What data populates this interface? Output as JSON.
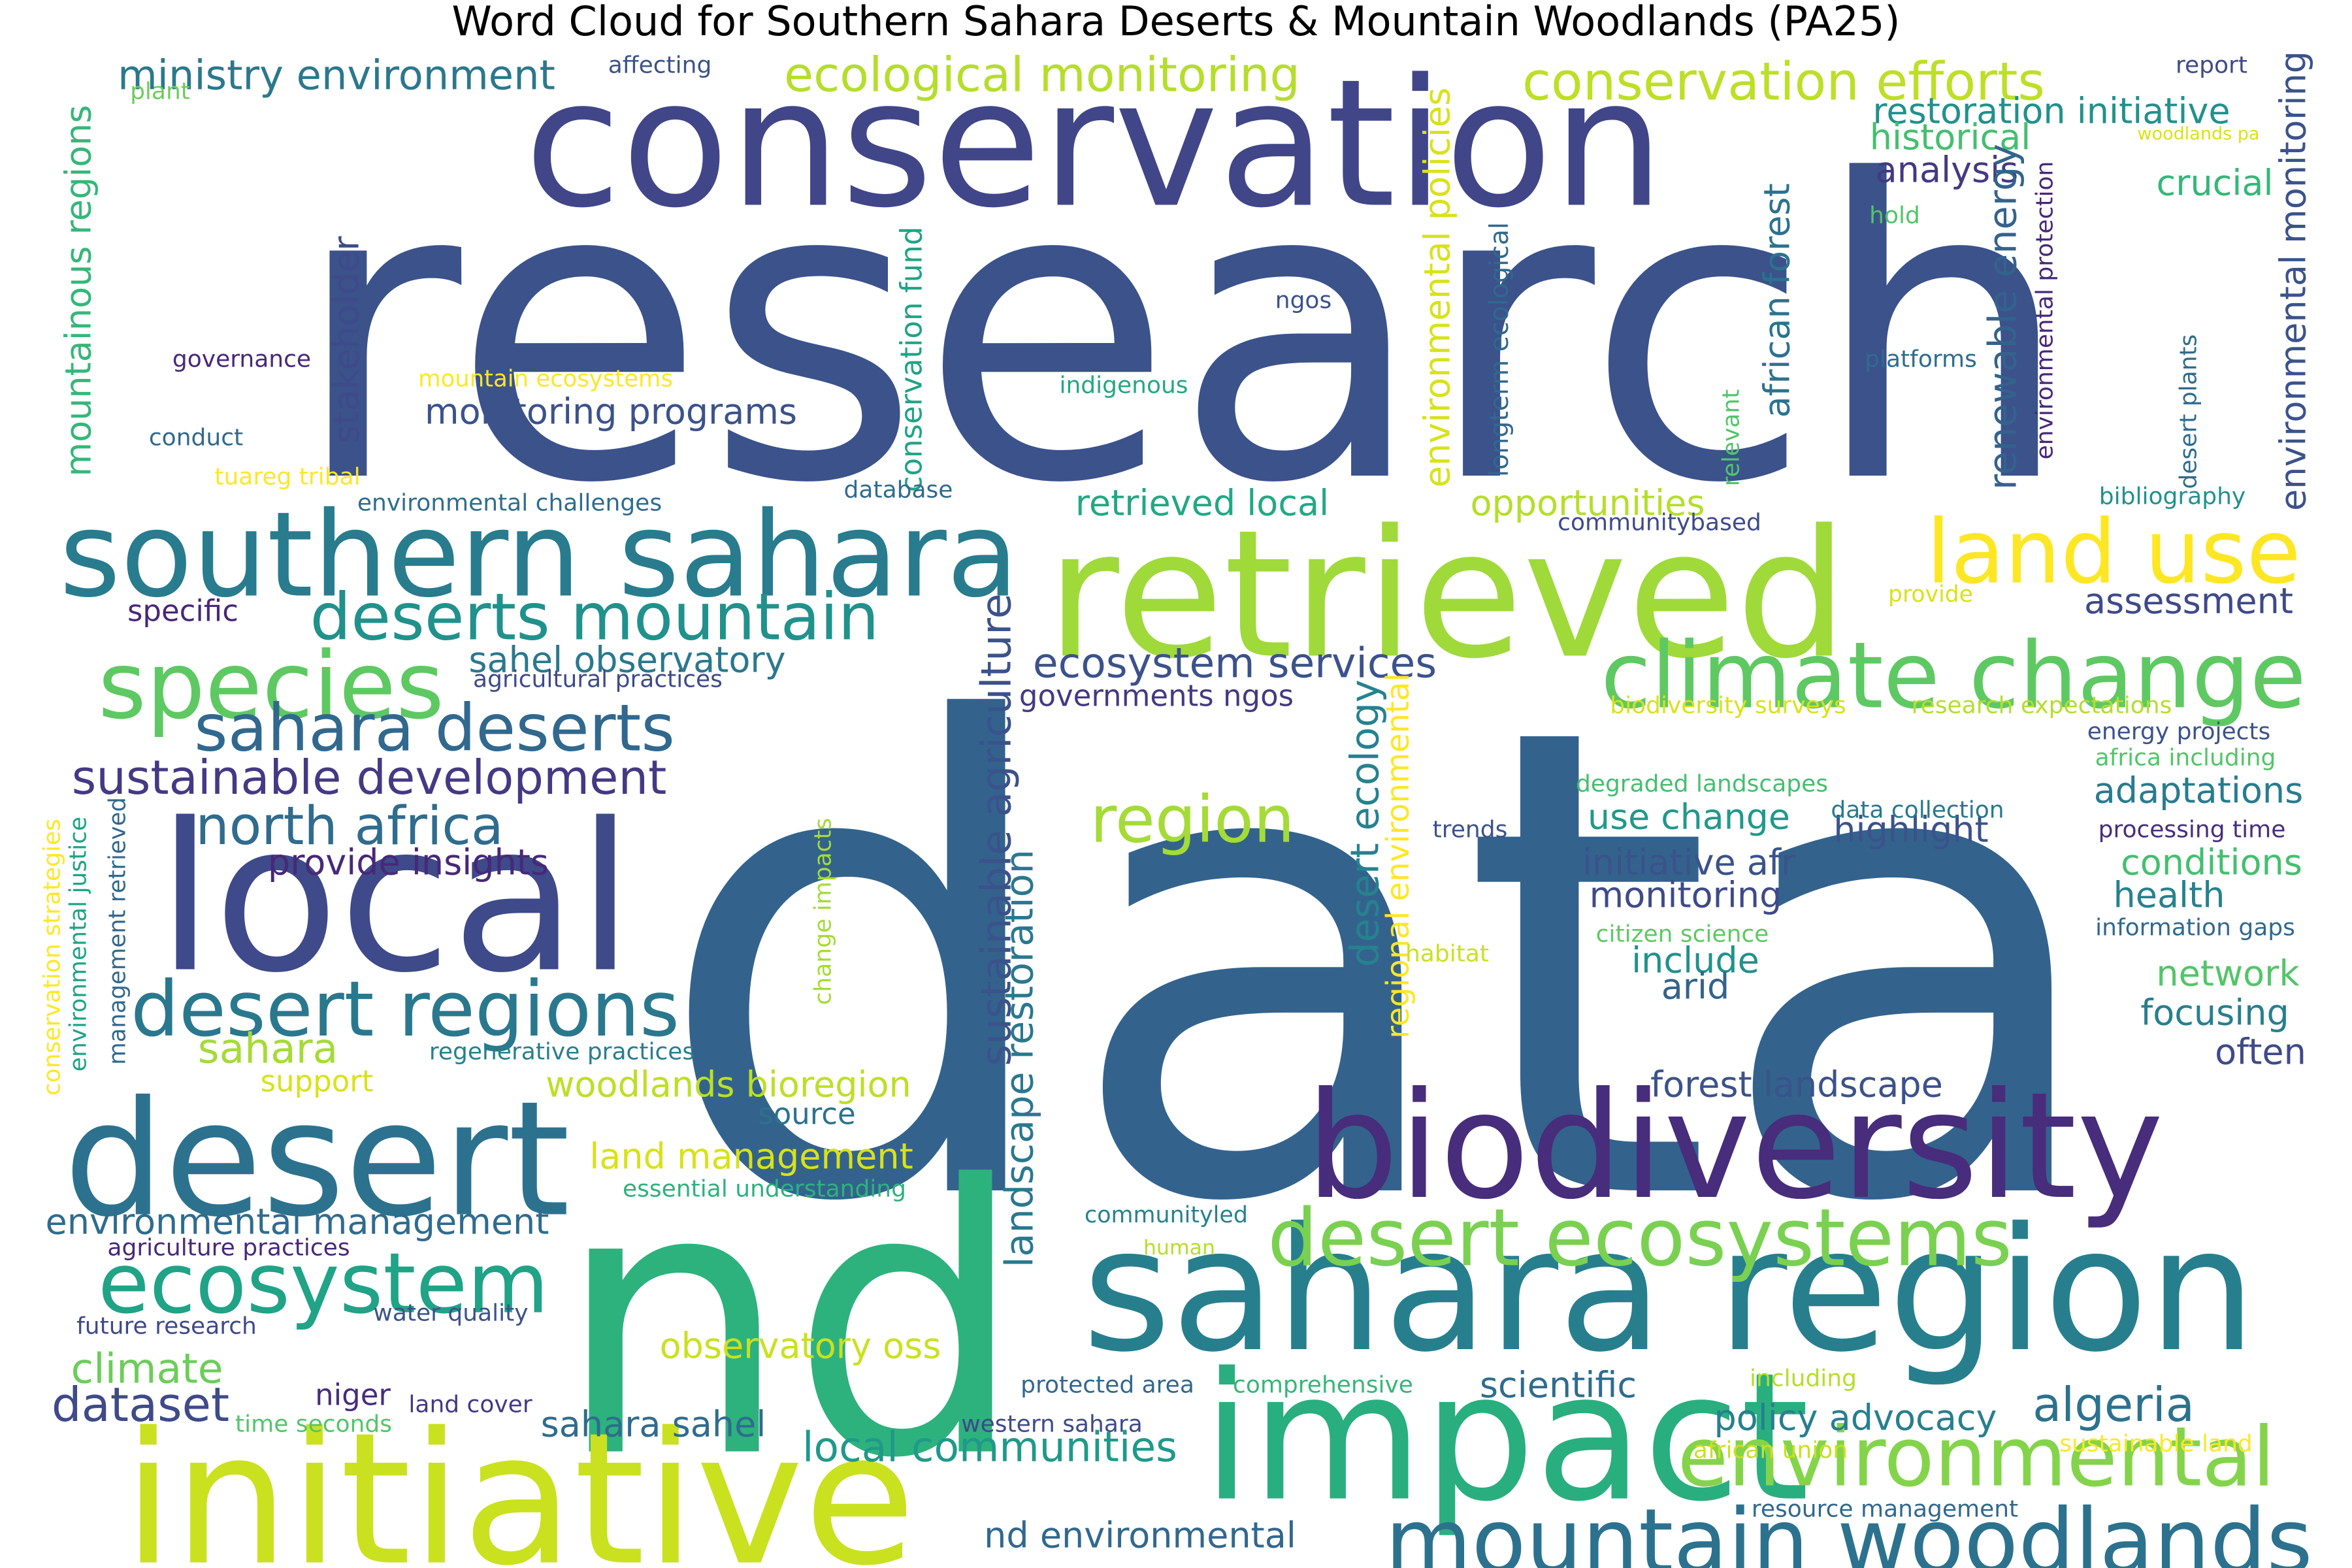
{
  "chart_data": {
    "type": "wordcloud",
    "title": "Word Cloud for Southern Sahara Deserts & Mountain Woodlands (PA25)",
    "words": [
      {
        "text": "data",
        "color": "#33638d"
      },
      {
        "text": "research",
        "color": "#3b528b"
      },
      {
        "text": "conservation",
        "color": "#404688"
      },
      {
        "text": "nd",
        "color": "#2db27d"
      },
      {
        "text": "retrieved",
        "color": "#9fda3a"
      },
      {
        "text": "biodiversity",
        "color": "#472d7b"
      },
      {
        "text": "sahara region",
        "color": "#277f8e"
      },
      {
        "text": "impact",
        "color": "#29af7f"
      },
      {
        "text": "initiative",
        "color": "#cae11f"
      },
      {
        "text": "desert",
        "color": "#2c728e"
      },
      {
        "text": "southern sahara",
        "color": "#287c8e"
      },
      {
        "text": "local",
        "color": "#3e4a89"
      },
      {
        "text": "ecosystem",
        "color": "#20a386"
      },
      {
        "text": "climate change",
        "color": "#5ec962"
      },
      {
        "text": "mountain woodlands",
        "color": "#2c728e"
      },
      {
        "text": "desert ecosystems",
        "color": "#7ad151"
      },
      {
        "text": "species",
        "color": "#5ec962"
      },
      {
        "text": "land use",
        "color": "#fde725"
      },
      {
        "text": "desert regions",
        "color": "#2a788e"
      },
      {
        "text": "environmental",
        "color": "#84d44b"
      },
      {
        "text": "deserts mountain",
        "color": "#21918c"
      },
      {
        "text": "sahara deserts",
        "color": "#31688e"
      },
      {
        "text": "region",
        "color": "#a5db36"
      },
      {
        "text": "conservation efforts",
        "color": "#bddf26"
      },
      {
        "text": "ecological monitoring",
        "color": "#b5de2b"
      },
      {
        "text": "sustainable development",
        "color": "#443983"
      },
      {
        "text": "north africa",
        "color": "#2f6c8e"
      },
      {
        "text": "ecosystem services",
        "color": "#3b528b"
      },
      {
        "text": "ministry environment",
        "color": "#2a788e"
      },
      {
        "text": "restoration initiative",
        "color": "#21918c"
      },
      {
        "text": "algeria",
        "color": "#2c728e"
      },
      {
        "text": "local communities",
        "color": "#1f998a"
      },
      {
        "text": "climate",
        "color": "#6ccd5a"
      },
      {
        "text": "dataset",
        "color": "#3e4a89"
      },
      {
        "text": "sahara",
        "color": "#a5db36"
      },
      {
        "text": "analysis",
        "color": "#443983"
      },
      {
        "text": "historical",
        "color": "#44bf70"
      },
      {
        "text": "crucial",
        "color": "#35b779"
      },
      {
        "text": "sahel observatory",
        "color": "#2a788e"
      },
      {
        "text": "governments ngos",
        "color": "#443983"
      },
      {
        "text": "monitoring programs",
        "color": "#3b528b"
      },
      {
        "text": "land management",
        "color": "#d8e219"
      },
      {
        "text": "woodlands bioregion",
        "color": "#bddf26"
      },
      {
        "text": "environmental management",
        "color": "#2f6c8e"
      },
      {
        "text": "provide insights",
        "color": "#482878"
      },
      {
        "text": "sahara sahel",
        "color": "#2f6c8e"
      },
      {
        "text": "observatory oss",
        "color": "#cae11f"
      },
      {
        "text": "retrieved local",
        "color": "#22a884"
      },
      {
        "text": "opportunities",
        "color": "#b5de2b"
      },
      {
        "text": "assessment",
        "color": "#3e4a89"
      },
      {
        "text": "adaptations",
        "color": "#287c8e"
      },
      {
        "text": "highlight",
        "color": "#3b528b"
      },
      {
        "text": "use change",
        "color": "#1f998a"
      },
      {
        "text": "initiative afr",
        "color": "#3b528b"
      },
      {
        "text": "monitoring",
        "color": "#3e4a89"
      },
      {
        "text": "include",
        "color": "#21918c"
      },
      {
        "text": "arid",
        "color": "#33638d"
      },
      {
        "text": "conditions",
        "color": "#44bf70"
      },
      {
        "text": "health",
        "color": "#26828e"
      },
      {
        "text": "network",
        "color": "#52c569"
      },
      {
        "text": "focusing",
        "color": "#277f8e"
      },
      {
        "text": "often",
        "color": "#3e4a89"
      },
      {
        "text": "forest landscape",
        "color": "#3b528b"
      },
      {
        "text": "policy advocacy",
        "color": "#277f8e"
      },
      {
        "text": "scientific",
        "color": "#2f6c8e"
      },
      {
        "text": "nd environmental",
        "color": "#31688e"
      },
      {
        "text": "source",
        "color": "#2c728e"
      },
      {
        "text": "support",
        "color": "#d8e219"
      },
      {
        "text": "specific",
        "color": "#482878"
      },
      {
        "text": "niger",
        "color": "#472d7b"
      },
      {
        "text": "landscape restoration",
        "color": "#2a788e",
        "rotate": true
      },
      {
        "text": "sustainable agriculture",
        "color": "#3b528b",
        "rotate": true
      },
      {
        "text": "desert ecology",
        "color": "#26828e",
        "rotate": true
      },
      {
        "text": "regional environmental",
        "color": "#fde725",
        "rotate": true
      },
      {
        "text": "environmental policies",
        "color": "#d8e219",
        "rotate": true
      },
      {
        "text": "conservation fund",
        "color": "#20a386",
        "rotate": true
      },
      {
        "text": "stakeholder",
        "color": "#3e4a89",
        "rotate": true
      },
      {
        "text": "mountainous regions",
        "color": "#35b779",
        "rotate": true
      },
      {
        "text": "african forest",
        "color": "#2c728e",
        "rotate": true
      },
      {
        "text": "renewable energy",
        "color": "#33638d",
        "rotate": true
      },
      {
        "text": "environmental monitoring",
        "color": "#3b528b",
        "rotate": true
      },
      {
        "text": "longterm ecological",
        "color": "#31688e",
        "rotate": true
      },
      {
        "text": "environmental protection",
        "color": "#482878",
        "rotate": true
      },
      {
        "text": "desert plants",
        "color": "#2f6c8e",
        "rotate": true
      },
      {
        "text": "relevant",
        "color": "#52c569",
        "rotate": true
      },
      {
        "text": "conservation strategies",
        "color": "#fde725",
        "rotate": true
      },
      {
        "text": "environmental justice",
        "color": "#20a386",
        "rotate": true
      },
      {
        "text": "management retrieved",
        "color": "#31688e",
        "rotate": true
      },
      {
        "text": "change impacts",
        "color": "#a5db36",
        "rotate": true
      },
      {
        "text": "report",
        "color": "#3e4a89"
      },
      {
        "text": "affecting",
        "color": "#3b528b"
      },
      {
        "text": "plant",
        "color": "#6ccd5a"
      },
      {
        "text": "woodlands pa",
        "color": "#d8e219"
      },
      {
        "text": "hold",
        "color": "#52c569"
      },
      {
        "text": "ngos",
        "color": "#3b528b"
      },
      {
        "text": "governance",
        "color": "#482878"
      },
      {
        "text": "mountain ecosystems",
        "color": "#fde725"
      },
      {
        "text": "indigenous",
        "color": "#22a884"
      },
      {
        "text": "platforms",
        "color": "#2f6c8e"
      },
      {
        "text": "conduct",
        "color": "#31688e"
      },
      {
        "text": "tuareg tribal",
        "color": "#fde725"
      },
      {
        "text": "environmental challenges",
        "color": "#2f6c8e"
      },
      {
        "text": "database",
        "color": "#2f6c8e"
      },
      {
        "text": "communitybased",
        "color": "#3e4a89"
      },
      {
        "text": "bibliography",
        "color": "#21918c"
      },
      {
        "text": "provide",
        "color": "#d8e219"
      },
      {
        "text": "agricultural practices",
        "color": "#3e4a89"
      },
      {
        "text": "biodiversity surveys",
        "color": "#d8e219"
      },
      {
        "text": "research expectations",
        "color": "#b5de2b"
      },
      {
        "text": "energy projects",
        "color": "#3b528b"
      },
      {
        "text": "africa including",
        "color": "#52c569"
      },
      {
        "text": "degraded landscapes",
        "color": "#44bf70"
      },
      {
        "text": "data collection",
        "color": "#2a788e"
      },
      {
        "text": "processing time",
        "color": "#472d7b"
      },
      {
        "text": "trends",
        "color": "#3b528b"
      },
      {
        "text": "information gaps",
        "color": "#31688e"
      },
      {
        "text": "citizen science",
        "color": "#5ec962"
      },
      {
        "text": "habitat",
        "color": "#cae11f"
      },
      {
        "text": "regenerative practices",
        "color": "#277f8e"
      },
      {
        "text": "essential understanding",
        "color": "#2db27d"
      },
      {
        "text": "communityled",
        "color": "#26828e"
      },
      {
        "text": "human",
        "color": "#b5de2b"
      },
      {
        "text": "agriculture practices",
        "color": "#482878"
      },
      {
        "text": "future research",
        "color": "#3e4a89"
      },
      {
        "text": "water quality",
        "color": "#3b528b"
      },
      {
        "text": "protected area",
        "color": "#31688e"
      },
      {
        "text": "comprehensive",
        "color": "#35b779"
      },
      {
        "text": "land cover",
        "color": "#443983"
      },
      {
        "text": "time seconds",
        "color": "#52c569"
      },
      {
        "text": "western sahara",
        "color": "#3e4a89"
      },
      {
        "text": "including",
        "color": "#b5de2b"
      },
      {
        "text": "african union",
        "color": "#cae11f"
      },
      {
        "text": "sustainable land",
        "color": "#fde725"
      },
      {
        "text": "resource management",
        "color": "#31688e"
      }
    ]
  }
}
